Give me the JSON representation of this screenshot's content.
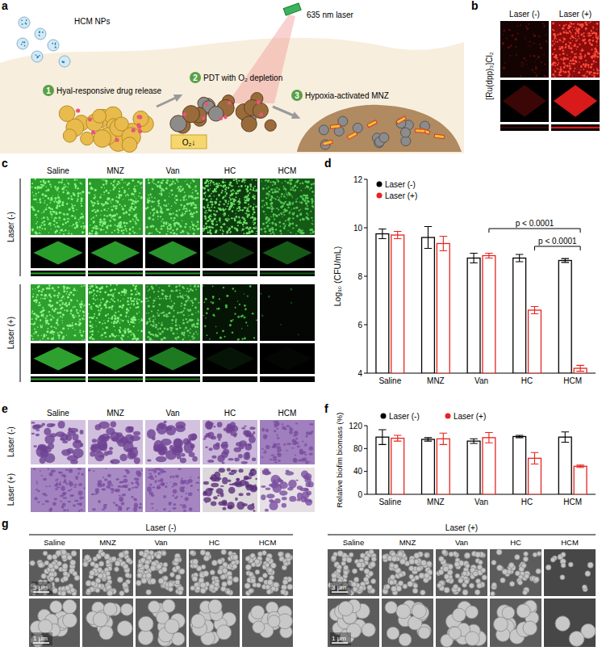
{
  "panel_labels": [
    "a",
    "b",
    "c",
    "d",
    "e",
    "f",
    "g"
  ],
  "schematic": {
    "nanoparticles": "HCM NPs",
    "laser": "635 nm laser",
    "steps": [
      {
        "number": "1",
        "text": "Hyal-responsive drug release"
      },
      {
        "number": "2",
        "text": "PDT with O₂ depletion"
      },
      {
        "number": "3",
        "text": "Hypoxia-activated MNZ"
      }
    ],
    "oxygen": "O₂↓"
  },
  "ru_staining": {
    "columns": [
      "Laser (-)",
      "Laser (+)"
    ],
    "row_label": "[Ru(dpp)₃]Cl₂"
  },
  "biofilm_fluorescence": {
    "columns": [
      "Saline",
      "MNZ",
      "Van",
      "HC",
      "HCM"
    ],
    "rows": [
      "Laser (-)",
      "Laser (+)"
    ]
  },
  "crystal_violet": {
    "columns": [
      "Saline",
      "MNZ",
      "Van",
      "HC",
      "HCM"
    ],
    "rows": [
      "Laser (-)",
      "Laser (+)"
    ]
  },
  "sem": {
    "groups": [
      "Laser (-)",
      "Laser (+)"
    ],
    "columns": [
      "Saline",
      "MNZ",
      "Van",
      "HC",
      "HCM"
    ],
    "scale_bars": [
      "3 μm",
      "1 μm"
    ]
  },
  "chart_data": [
    {
      "type": "bar",
      "y_label": "Log₁₀ (CFU/mL)",
      "categories": [
        "Saline",
        "MNZ",
        "Van",
        "HC",
        "HCM"
      ],
      "series": [
        {
          "name": "Laser (-)",
          "color": "#000000",
          "values": [
            9.75,
            9.6,
            8.75,
            8.75,
            8.65
          ],
          "errors": [
            0.2,
            0.45,
            0.2,
            0.15,
            0.08
          ]
        },
        {
          "name": "Laser (+)",
          "color": "#e8231e",
          "values": [
            9.7,
            9.35,
            8.85,
            6.6,
            4.2
          ],
          "errors": [
            0.15,
            0.3,
            0.1,
            0.15,
            0.12
          ]
        }
      ],
      "ylim": [
        4,
        12
      ],
      "yticks": [
        4,
        6,
        8,
        10,
        12
      ],
      "grid": false,
      "legend": "top-left",
      "annotations": [
        {
          "text": "p < 0.0001",
          "between": [
            "Van",
            "HCM"
          ],
          "series": "Laser (+)"
        },
        {
          "text": "p < 0.0001",
          "between": [
            "HC",
            "HCM"
          ],
          "series": "Laser (+)"
        }
      ]
    },
    {
      "type": "bar",
      "y_label": "Relative biofim biomass (%)",
      "categories": [
        "Saline",
        "MNZ",
        "Van",
        "HC",
        "HCM"
      ],
      "series": [
        {
          "name": "Laser (-)",
          "color": "#000000",
          "values": [
            100,
            96,
            93,
            101,
            100
          ],
          "errors": [
            13,
            3,
            4,
            2,
            9
          ]
        },
        {
          "name": "Laser (+)",
          "color": "#e8231e",
          "values": [
            98,
            97,
            99,
            63,
            49
          ],
          "errors": [
            5,
            10,
            9,
            10,
            2
          ]
        }
      ],
      "ylim": [
        0,
        120
      ],
      "yticks": [
        0,
        40,
        80,
        120
      ],
      "grid": false,
      "legend": "top"
    }
  ]
}
